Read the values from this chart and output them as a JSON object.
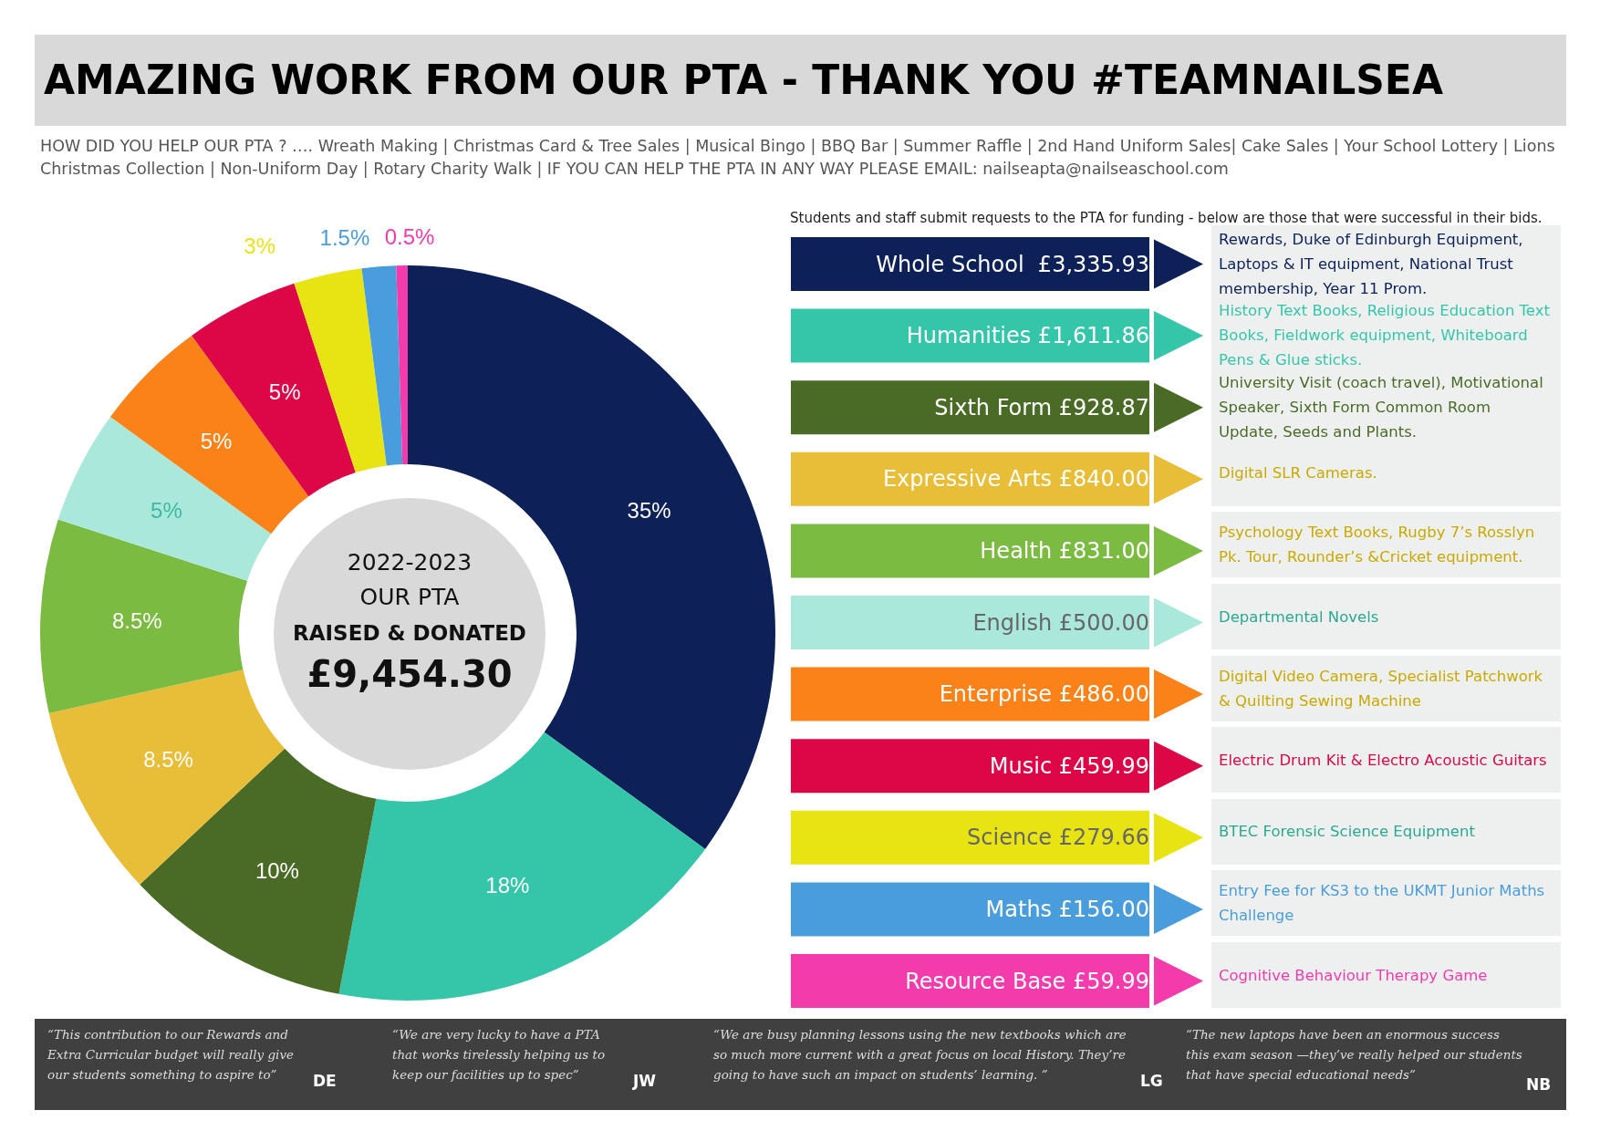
{
  "chart_data": {
    "type": "donut",
    "title": "AMAZING WORK FROM OUR PTA - THANK YOU #TEAMNAILSEA",
    "subtitle": "HOW DID YOU HELP OUR PTA ? …. Wreath Making | Christmas Card & Tree Sales | Musical Bingo | BBQ Bar | Summer Raffle | 2nd Hand Uniform Sales| Cake Sales | Your School Lottery | Lions Christmas Collection | Non-Uniform Day | Rotary Charity Walk | IF YOU CAN HELP THE PTA IN ANY WAY PLEASE EMAIL: nailseapta@nailseaschool.com",
    "categories": [
      "Whole School  £3,335.93",
      "Humanities £1,611.86",
      "Sixth Form £928.87",
      "Expressive Arts £840.00",
      "Health £831.00",
      "English £500.00",
      "Enterprise £486.00",
      "Music £459.99",
      "Science £279.66",
      "Maths £156.00",
      "Resource Base £59.99"
    ],
    "values": [
      35,
      18,
      10,
      8.5,
      8.5,
      5,
      5,
      5,
      3,
      1.5,
      0.5
    ],
    "value_labels": [
      "35%",
      "18%",
      "10%",
      "8.5%",
      "8.5%",
      "5%",
      "5%",
      "5%",
      "3%",
      "1.5%",
      "0.5%"
    ],
    "colors": [
      "#0d2158",
      "#35c6a9",
      "#4a6b26",
      "#e8bd38",
      "#7cbb42",
      "#abe8dc",
      "#fb8219",
      "#dd0748",
      "#e8e414",
      "#4a9ddc",
      "#f43bac"
    ],
    "legend": "right",
    "annotations": [
      "Students and staff submit requests to the PTA for funding - below are those that were successful in their bids.",
      "2022-2023",
      "OUR PTA",
      "RAISED & DONATED",
      "£9,454.30",
      "Rewards, Duke of Edinburgh Equipment, Laptops & IT equipment, National Trust membership, Year 11 Prom.",
      "History Text Books, Religious Education Text Books, Fieldwork equipment, Whiteboard Pens & Glue sticks.",
      "University Visit (coach travel), Motivational Speaker, Sixth Form Common Room Update, Seeds and Plants.",
      "Digital SLR Cameras.",
      "Psychology Text Books, Rugby 7’s Rosslyn Pk. Tour, Rounder’s &Cricket equipment.",
      "Departmental Novels",
      "Digital Video Camera, Specialist Patchwork & Quilting Sewing Machine",
      "Electric Drum Kit & Electro Acoustic Guitars",
      "BTEC Forensic Science Equipment",
      "Entry Fee for KS3 to the UKMT Junior Maths Challenge",
      "Cognitive Behaviour Therapy Game",
      "“This contribution to our Rewards and Extra Curricular budget will really give our students something to aspire to”",
      "DE",
      "“We are very lucky to have a PTA that works tirelessly helping us to keep our facilities up to spec”",
      "JW",
      "“We are busy planning lessons using the new textbooks which are so much more current with a great focus on local History. They’re going to have such an impact on students’ learning. ”",
      "LG",
      "“The new laptops have been an enormous success this exam season —they’ve really helped our students that have special educational needs”",
      "NB"
    ]
  }
}
